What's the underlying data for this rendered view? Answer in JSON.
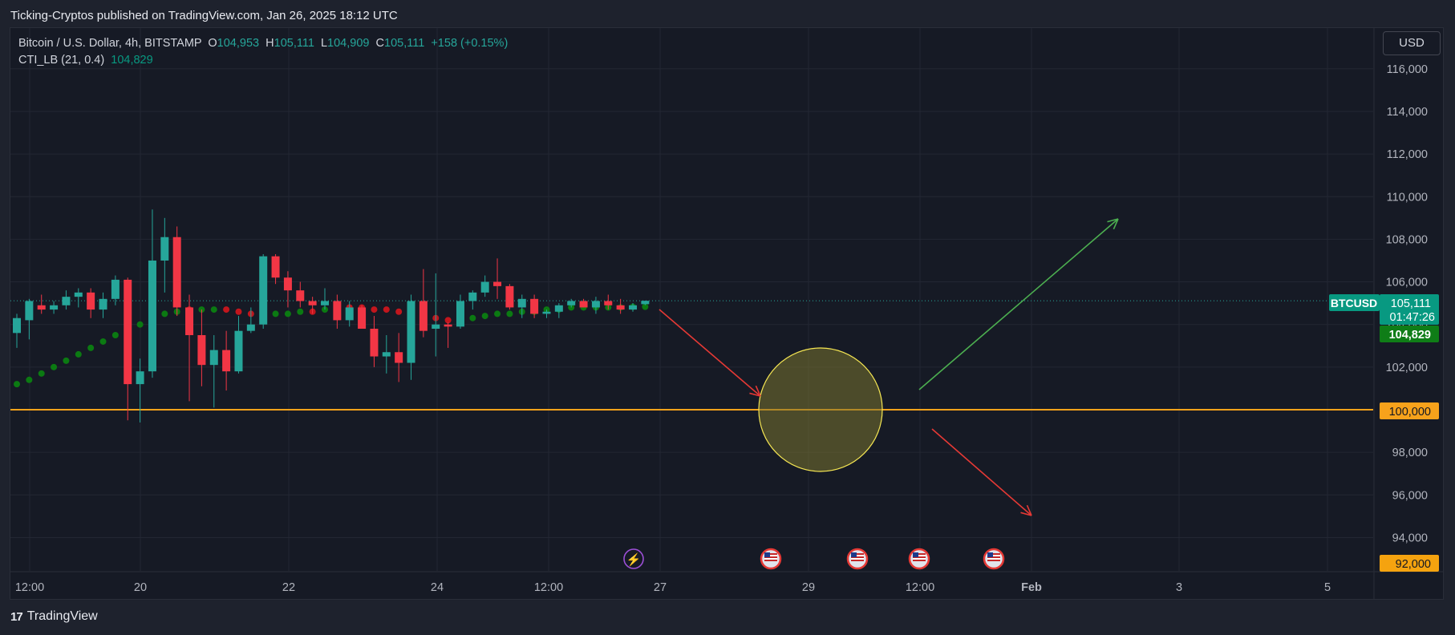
{
  "header": {
    "publish_text": "Ticking-Cryptos published on TradingView.com, Jan 26, 2025 18:12 UTC"
  },
  "legend": {
    "symbol": "Bitcoin / U.S. Dollar, 4h, BITSTAMP",
    "o_label": "O",
    "o_value": "104,953",
    "h_label": "H",
    "h_value": "105,111",
    "l_label": "L",
    "l_value": "104,909",
    "c_label": "C",
    "c_value": "105,111",
    "change": "+158 (+0.15%)",
    "indicator_name": "CTI_LB (21, 0.4)",
    "indicator_value": "104,829"
  },
  "currency_button": "USD",
  "footer": {
    "brand": "TradingView"
  },
  "colors": {
    "background": "#161a25",
    "up": "#26a69a",
    "down": "#f23645",
    "dot_up": "#0b7a12",
    "dot_down": "#c2161d",
    "support_line": "#f7a21b",
    "arrow_down": "#e53935",
    "arrow_up": "#4caf50",
    "circle_fill": "#7a7530",
    "circle_stroke": "#f5e653"
  },
  "chart_data": {
    "type": "candlestick",
    "symbol": "BTCUSD",
    "interval": "4h",
    "ylim": [
      91500,
      117000
    ],
    "y_ticks": [
      "116,000",
      "114,000",
      "112,000",
      "110,000",
      "108,000",
      "106,000",
      "104,000",
      "102,000",
      "100,000",
      "98,000",
      "96,000",
      "94,000",
      "92,000"
    ],
    "x_ticks": [
      "12:00",
      "20",
      "22",
      "24",
      "12:00",
      "27",
      "29",
      "12:00",
      "Feb",
      "3",
      "5"
    ],
    "candles": [
      [
        103600,
        104500,
        102900,
        104300
      ],
      [
        104200,
        105200,
        103300,
        105100
      ],
      [
        104900,
        105400,
        104500,
        104700
      ],
      [
        104700,
        105100,
        104500,
        104900
      ],
      [
        104900,
        105600,
        104700,
        105300
      ],
      [
        105300,
        105700,
        104800,
        105500
      ],
      [
        105500,
        105700,
        104300,
        104700
      ],
      [
        104700,
        105500,
        104300,
        105200
      ],
      [
        105200,
        106300,
        104900,
        106100
      ],
      [
        106100,
        106200,
        99500,
        101200
      ],
      [
        101200,
        102400,
        99400,
        101800
      ],
      [
        101800,
        109400,
        101500,
        107000
      ],
      [
        107000,
        109000,
        105500,
        108100
      ],
      [
        108100,
        108600,
        104400,
        104800
      ],
      [
        104800,
        105400,
        100400,
        103500
      ],
      [
        103500,
        104700,
        101100,
        102100
      ],
      [
        102100,
        103500,
        100100,
        102800
      ],
      [
        102800,
        103700,
        100900,
        101800
      ],
      [
        101800,
        104400,
        101700,
        103700
      ],
      [
        103700,
        104800,
        103600,
        104000
      ],
      [
        104000,
        107300,
        103800,
        107200
      ],
      [
        107200,
        107300,
        105900,
        106200
      ],
      [
        106200,
        106500,
        104800,
        105600
      ],
      [
        105600,
        106000,
        104800,
        105100
      ],
      [
        105100,
        105300,
        104500,
        104900
      ],
      [
        104900,
        105700,
        104700,
        105100
      ],
      [
        105100,
        105400,
        103800,
        104200
      ],
      [
        104200,
        105100,
        103900,
        104800
      ],
      [
        104800,
        104900,
        103900,
        103800
      ],
      [
        103800,
        104400,
        102000,
        102500
      ],
      [
        102500,
        103500,
        101700,
        102700
      ],
      [
        102700,
        103600,
        101300,
        102200
      ],
      [
        102200,
        105400,
        101400,
        105100
      ],
      [
        105100,
        106600,
        103400,
        103700
      ],
      [
        103800,
        106400,
        102500,
        104000
      ],
      [
        104000,
        104100,
        102900,
        103900
      ],
      [
        103900,
        105400,
        103800,
        105100
      ],
      [
        105100,
        105600,
        104700,
        105500
      ],
      [
        105500,
        106300,
        105300,
        106000
      ],
      [
        106000,
        107100,
        105200,
        105800
      ],
      [
        105800,
        105900,
        104700,
        104800
      ],
      [
        104800,
        105400,
        104300,
        105200
      ],
      [
        105200,
        105400,
        104300,
        104500
      ],
      [
        104500,
        104700,
        104300,
        104600
      ],
      [
        104600,
        105000,
        104300,
        104900
      ],
      [
        104900,
        105200,
        104800,
        105100
      ],
      [
        105100,
        105200,
        104800,
        104800
      ],
      [
        104800,
        105300,
        104500,
        105100
      ],
      [
        105100,
        105400,
        104700,
        104900
      ],
      [
        104900,
        105200,
        104500,
        104700
      ],
      [
        104700,
        105000,
        104600,
        104900
      ],
      [
        104953,
        105111,
        104909,
        105111
      ]
    ],
    "cti_dots": [
      [
        101200,
        "up"
      ],
      [
        101400,
        "up"
      ],
      [
        101700,
        "up"
      ],
      [
        102000,
        "up"
      ],
      [
        102300,
        "up"
      ],
      [
        102600,
        "up"
      ],
      [
        102900,
        "up"
      ],
      [
        103200,
        "up"
      ],
      [
        103500,
        "up"
      ],
      [
        103800,
        "up"
      ],
      [
        104000,
        "up"
      ],
      [
        104300,
        "up"
      ],
      [
        104500,
        "up"
      ],
      [
        104600,
        "up"
      ],
      [
        104700,
        "down"
      ],
      [
        104700,
        "up"
      ],
      [
        104700,
        "up"
      ],
      [
        104700,
        "down"
      ],
      [
        104600,
        "down"
      ],
      [
        104500,
        "down"
      ],
      [
        104500,
        "down"
      ],
      [
        104500,
        "up"
      ],
      [
        104500,
        "up"
      ],
      [
        104600,
        "up"
      ],
      [
        104600,
        "down"
      ],
      [
        104700,
        "up"
      ],
      [
        104700,
        "up"
      ],
      [
        104800,
        "down"
      ],
      [
        104800,
        "down"
      ],
      [
        104700,
        "down"
      ],
      [
        104700,
        "down"
      ],
      [
        104600,
        "down"
      ],
      [
        104600,
        "down"
      ],
      [
        104400,
        "down"
      ],
      [
        104300,
        "down"
      ],
      [
        104200,
        "down"
      ],
      [
        104300,
        "up"
      ],
      [
        104300,
        "up"
      ],
      [
        104400,
        "up"
      ],
      [
        104500,
        "up"
      ],
      [
        104500,
        "up"
      ],
      [
        104600,
        "up"
      ],
      [
        104600,
        "up"
      ],
      [
        104700,
        "up"
      ],
      [
        104700,
        "up"
      ],
      [
        104800,
        "up"
      ],
      [
        104800,
        "up"
      ],
      [
        104800,
        "up"
      ],
      [
        104800,
        "up"
      ],
      [
        104800,
        "up"
      ],
      [
        104829,
        "up"
      ],
      [
        104829,
        "up"
      ]
    ],
    "support_level": 100000,
    "current_price": {
      "label": "BTCUSD",
      "value": "105,111",
      "countdown": "01:47:26",
      "price": 105111
    },
    "indicator_price": {
      "value": "104,829",
      "price": 104829
    },
    "support_label": "100,000",
    "bottom_label": "92,000",
    "annotations": {
      "circle": {
        "center_price": 100000
      },
      "arrows": [
        {
          "color": "red",
          "direction": "down-right"
        },
        {
          "color": "green",
          "direction": "up-right"
        },
        {
          "color": "red",
          "direction": "down-right"
        }
      ],
      "events": [
        "earnings-icon",
        "us-flag-icon",
        "us-flag-icon",
        "us-flag-icon",
        "us-flag-icon"
      ]
    }
  }
}
